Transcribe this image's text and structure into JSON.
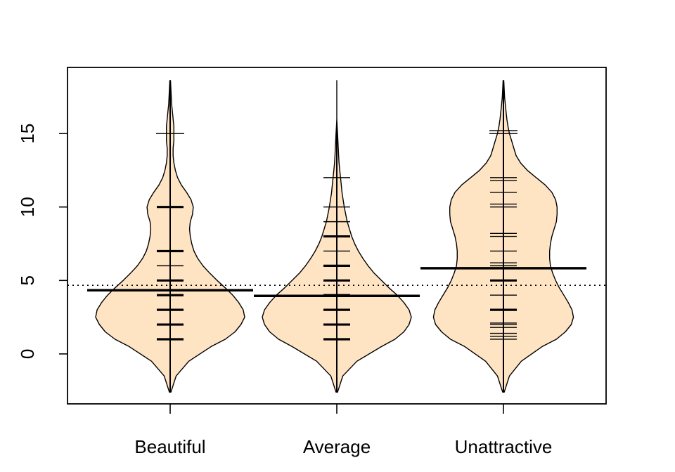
{
  "chart_data": {
    "type": "beanplot",
    "title": "",
    "xlabel": "",
    "ylabel": "",
    "categories": [
      "Beautiful",
      "Average",
      "Unattractive"
    ],
    "ylim": [
      -3.4,
      19.5
    ],
    "yticks": [
      0,
      5,
      10,
      15
    ],
    "overall_mean": 4.67,
    "group_means": [
      4.33,
      3.95,
      5.83
    ],
    "group_ranges": [
      [
        -2.6,
        18.6
      ],
      [
        -2.6,
        15.6
      ],
      [
        -2.6,
        18.6
      ]
    ],
    "density_widths": {
      "y": [
        -2.6,
        -1.5,
        -0.5,
        0.5,
        1,
        1.5,
        2,
        2.5,
        3,
        3.5,
        4,
        4.5,
        5,
        5.5,
        6,
        6.5,
        7,
        7.5,
        8,
        8.5,
        9,
        9.5,
        10,
        10.5,
        11,
        11.5,
        12,
        12.5,
        13,
        13.5,
        14,
        14.5,
        15,
        15.5,
        16,
        16.5,
        17,
        17.5,
        18,
        18.6
      ],
      "series": [
        {
          "values": [
            0.01,
            0.08,
            0.25,
            0.55,
            0.74,
            0.87,
            0.95,
            1.0,
            0.98,
            0.92,
            0.84,
            0.74,
            0.63,
            0.53,
            0.44,
            0.37,
            0.32,
            0.29,
            0.27,
            0.26,
            0.27,
            0.3,
            0.31,
            0.28,
            0.22,
            0.15,
            0.1,
            0.07,
            0.05,
            0.04,
            0.04,
            0.05,
            0.05,
            0.05,
            0.04,
            0.03,
            0.02,
            0.015,
            0.01,
            0.005
          ]
        },
        {
          "values": [
            0.01,
            0.08,
            0.27,
            0.6,
            0.78,
            0.9,
            0.97,
            1.0,
            0.97,
            0.9,
            0.81,
            0.7,
            0.6,
            0.5,
            0.42,
            0.35,
            0.29,
            0.24,
            0.2,
            0.17,
            0.14,
            0.12,
            0.1,
            0.085,
            0.07,
            0.06,
            0.05,
            0.04,
            0.03,
            0.025,
            0.02,
            0.015,
            0.01,
            0.005,
            0,
            0,
            0,
            0,
            0,
            0
          ]
        },
        {
          "values": [
            0.01,
            0.08,
            0.24,
            0.52,
            0.71,
            0.83,
            0.91,
            0.94,
            0.92,
            0.87,
            0.81,
            0.75,
            0.7,
            0.66,
            0.63,
            0.62,
            0.62,
            0.63,
            0.65,
            0.68,
            0.71,
            0.72,
            0.72,
            0.7,
            0.65,
            0.56,
            0.44,
            0.32,
            0.23,
            0.17,
            0.14,
            0.11,
            0.08,
            0.06,
            0.045,
            0.035,
            0.025,
            0.015,
            0.01,
            0.005
          ]
        }
      ]
    },
    "points": [
      [
        1,
        1,
        1,
        1,
        2,
        2,
        2,
        2,
        3,
        3,
        4,
        4,
        5,
        5,
        6,
        7,
        7,
        10,
        10,
        10,
        15
      ],
      [
        1,
        1,
        1,
        1,
        1,
        1,
        2,
        2,
        2,
        3,
        3,
        3,
        3,
        4,
        4,
        5,
        5,
        5,
        6,
        6,
        7,
        8,
        8,
        9,
        10,
        12
      ],
      [
        1,
        1.2,
        1.4,
        1.8,
        2,
        2.1,
        3,
        3,
        4,
        5,
        5,
        6,
        6.2,
        7,
        8,
        8.2,
        10,
        10.2,
        11,
        11.8,
        12,
        15,
        15.2
      ]
    ],
    "bean_fill": "#ffe4c4",
    "line_color": "#000000"
  }
}
